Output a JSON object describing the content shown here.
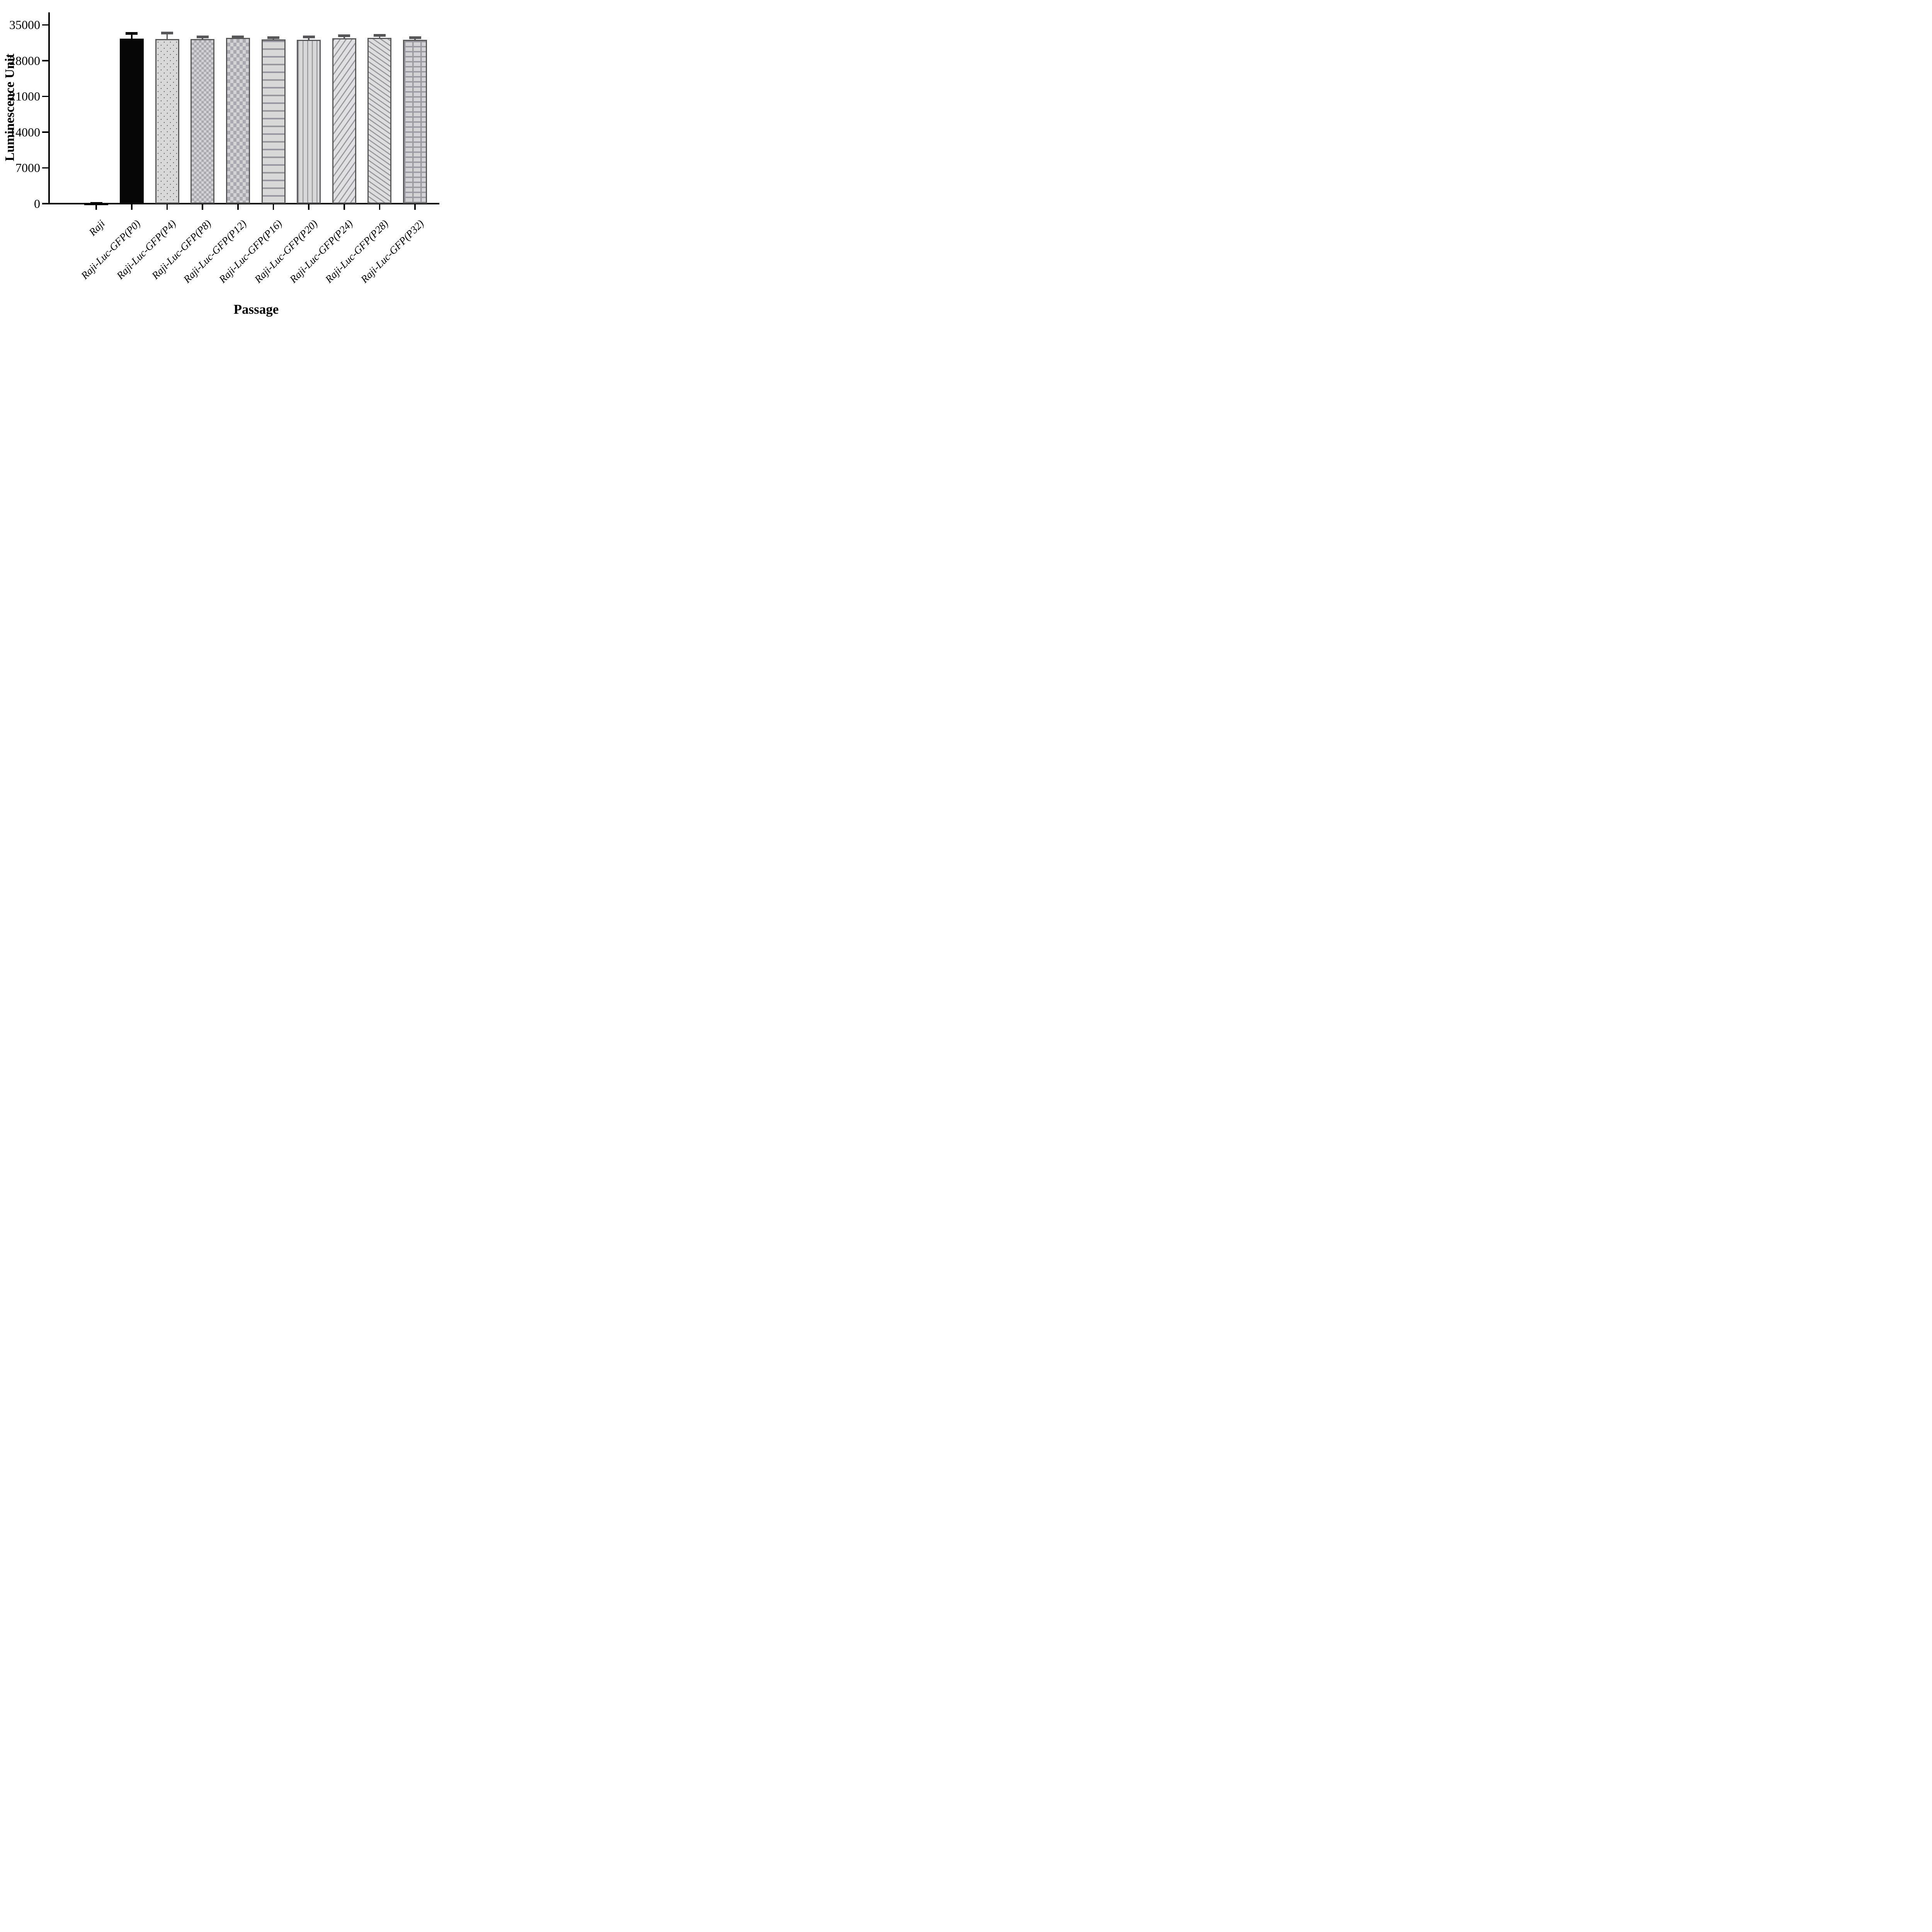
{
  "chart_data": {
    "type": "bar",
    "title": "",
    "xlabel": "Passage",
    "ylabel": "Luminescence Unit",
    "ylim": [
      0,
      35000
    ],
    "yticks": [
      "0",
      "7000",
      "14000",
      "21000",
      "28000",
      "35000"
    ],
    "ytick_values": [
      0,
      7000,
      14000,
      21000,
      28000,
      35000
    ],
    "grid": false,
    "legend": "none",
    "error_bars": "sd, upper only",
    "bars": [
      {
        "category": "Raji",
        "value": 150,
        "sd": 130,
        "pattern": "solid-black"
      },
      {
        "category": "Raji-Luc-GFP(P0)",
        "value": 32300,
        "sd": 1250,
        "pattern": "solid-black"
      },
      {
        "category": "Raji-Luc-GFP(P4)",
        "value": 32250,
        "sd": 1400,
        "pattern": "dots"
      },
      {
        "category": "Raji-Luc-GFP(P8)",
        "value": 32240,
        "sd": 630,
        "pattern": "checker-small"
      },
      {
        "category": "Raji-Luc-GFP(P12)",
        "value": 32420,
        "sd": 470,
        "pattern": "checker-large"
      },
      {
        "category": "Raji-Luc-GFP(P16)",
        "value": 32180,
        "sd": 580,
        "pattern": "horizontal-lines"
      },
      {
        "category": "Raji-Luc-GFP(P20)",
        "value": 32030,
        "sd": 860,
        "pattern": "vertical-lines"
      },
      {
        "category": "Raji-Luc-GFP(P24)",
        "value": 32370,
        "sd": 780,
        "pattern": "diagonal-up"
      },
      {
        "category": "Raji-Luc-GFP(P28)",
        "value": 32430,
        "sd": 780,
        "pattern": "diagonal-down"
      },
      {
        "category": "Raji-Luc-GFP(P32)",
        "value": 32090,
        "sd": 630,
        "pattern": "grid"
      }
    ],
    "colors": {
      "black_bar": "#060606",
      "bar_fill": "#d8d8d8",
      "pattern_mark": "#97979d",
      "bar_border": "#57575a",
      "axis": "#000000",
      "background": "#ffffff"
    }
  }
}
